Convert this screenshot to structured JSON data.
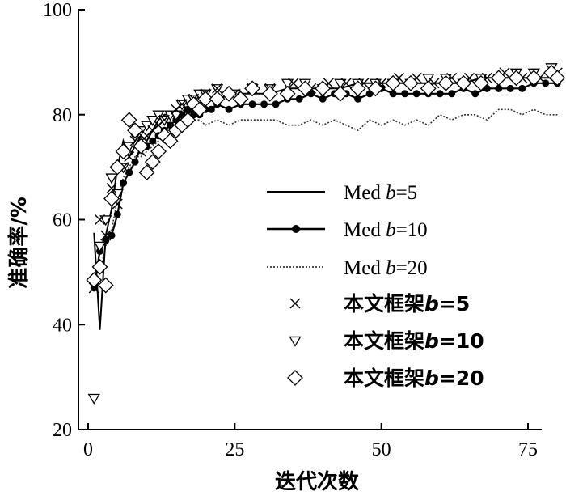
{
  "chart_data": {
    "type": "line",
    "xlabel": "迭代次数",
    "ylabel": "准确率/%",
    "xlim": [
      -1,
      80
    ],
    "ylim": [
      20,
      100
    ],
    "x_ticks": [
      "0",
      "25",
      "50",
      "75"
    ],
    "y_ticks": [
      "20",
      "40",
      "60",
      "80",
      "100"
    ],
    "legend_position": "right",
    "series": [
      {
        "name": "Med b=5",
        "prefix": "Med ",
        "bvar": "b",
        "suffix": "=5",
        "style": "solid-line",
        "color": "#000000",
        "x": [
          1,
          2,
          3,
          4,
          5,
          6,
          7,
          8,
          9,
          10,
          11,
          12,
          13,
          14,
          15,
          16,
          17,
          18,
          19,
          20,
          22,
          25,
          28,
          31,
          34,
          37,
          40,
          43,
          46,
          49,
          52,
          55,
          58,
          61,
          64,
          67,
          70,
          73,
          76,
          79,
          80
        ],
        "y": [
          57.5,
          39,
          57,
          62,
          70,
          75,
          72,
          74,
          76,
          75,
          77,
          79,
          80,
          80,
          81,
          82,
          81,
          82,
          82,
          83,
          83,
          84,
          84,
          84,
          85,
          85,
          85,
          85,
          86,
          86,
          86,
          86,
          86,
          86,
          86,
          87,
          87,
          87,
          87,
          87,
          87
        ]
      },
      {
        "name": "Med b=10",
        "prefix": "Med ",
        "bvar": "b",
        "suffix": "=10",
        "style": "dot-line",
        "color": "#000000",
        "x": [
          1,
          2,
          3,
          4,
          5,
          6,
          7,
          8,
          9,
          10,
          11,
          12,
          13,
          14,
          15,
          16,
          17,
          18,
          19,
          20,
          21,
          22,
          24,
          26,
          28,
          30,
          32,
          34,
          36,
          38,
          40,
          42,
          44,
          46,
          48,
          50,
          52,
          54,
          56,
          58,
          60,
          62,
          64,
          66,
          68,
          70,
          72,
          74,
          76,
          78,
          80
        ],
        "y": [
          47,
          54,
          56,
          57,
          61,
          67,
          69,
          71,
          74,
          74,
          75,
          76,
          77,
          78,
          79,
          80,
          81,
          80,
          80,
          81,
          81,
          82,
          81,
          82,
          82,
          82,
          82,
          83,
          83,
          84,
          83,
          84,
          84,
          83,
          84,
          85,
          84,
          84,
          84,
          84,
          84,
          84,
          85,
          84,
          85,
          85,
          85,
          85,
          86,
          86,
          86
        ]
      },
      {
        "name": "Med b=20",
        "prefix": "Med ",
        "bvar": "b",
        "suffix": "=20",
        "style": "dotted-line",
        "color": "#333333",
        "x": [
          1,
          2,
          3,
          4,
          5,
          6,
          7,
          8,
          9,
          10,
          11,
          12,
          13,
          14,
          15,
          16,
          17,
          18,
          19,
          20,
          22,
          24,
          26,
          28,
          30,
          32,
          34,
          36,
          38,
          40,
          42,
          44,
          46,
          48,
          50,
          52,
          54,
          56,
          58,
          60,
          62,
          64,
          66,
          68,
          70,
          72,
          74,
          76,
          78,
          80
        ],
        "y": [
          48,
          50,
          55,
          58,
          64,
          68,
          70,
          72,
          72,
          73,
          74,
          75,
          76,
          76,
          77,
          77,
          78,
          79,
          79,
          78,
          79,
          78,
          79,
          79,
          79,
          79,
          78,
          78,
          79,
          78,
          79,
          78,
          77,
          79,
          78,
          79,
          78,
          79,
          78,
          80,
          79,
          80,
          80,
          79,
          81,
          81,
          80,
          81,
          80,
          80
        ]
      },
      {
        "name": "本文框架b=5",
        "prefix": "本文框架",
        "bvar": "b",
        "suffix": "=5",
        "style": "x-marker",
        "color": "#000000",
        "x": [
          1,
          2,
          3,
          4,
          5,
          6,
          7,
          8,
          9,
          10,
          11,
          12,
          13,
          14,
          15,
          16,
          17,
          18,
          19,
          20,
          22,
          25,
          28,
          31,
          35,
          38,
          41,
          44,
          47,
          50,
          53,
          56,
          59,
          62,
          65,
          68,
          71,
          74,
          77,
          80
        ],
        "y": [
          47,
          60,
          57,
          66,
          63,
          70,
          72,
          75,
          73,
          76,
          77,
          78,
          79,
          78,
          81,
          82,
          80,
          83,
          82,
          84,
          85,
          84,
          85,
          85,
          86,
          85,
          86,
          86,
          86,
          86,
          87,
          87,
          86,
          87,
          87,
          87,
          88,
          87,
          87,
          88
        ]
      },
      {
        "name": "本文框架b=10",
        "prefix": "本文框架",
        "bvar": "b",
        "suffix": "=10",
        "style": "triangle-marker",
        "color": "#000000",
        "x": [
          1,
          2,
          3,
          4,
          5,
          6,
          7,
          8,
          9,
          10,
          11,
          12,
          13,
          14,
          15,
          16,
          17,
          18,
          19,
          20,
          22,
          25,
          28,
          31,
          34,
          37,
          40,
          43,
          46,
          49,
          52,
          55,
          58,
          61,
          64,
          67,
          70,
          73,
          76,
          79
        ],
        "y": [
          26,
          55,
          60,
          68,
          65,
          70,
          74,
          76,
          77,
          78,
          79,
          80,
          79,
          80,
          80,
          82,
          83,
          83,
          84,
          84,
          85,
          84,
          85,
          85,
          86,
          86,
          85,
          86,
          86,
          86,
          86,
          86,
          87,
          87,
          86,
          87,
          87,
          88,
          88,
          89
        ]
      },
      {
        "name": "本文框架b=20",
        "prefix": "本文框架",
        "bvar": "b",
        "suffix": "=20",
        "style": "diamond-marker",
        "color": "#000000",
        "x": [
          1,
          2,
          3,
          4,
          5,
          6,
          7,
          8,
          9,
          10,
          11,
          12,
          13,
          14,
          15,
          16,
          17,
          18,
          19,
          20,
          22,
          24,
          26,
          28,
          31,
          34,
          37,
          40,
          43,
          46,
          49,
          52,
          55,
          58,
          61,
          64,
          67,
          70,
          73,
          76,
          79,
          80
        ],
        "y": [
          48.5,
          51,
          47.5,
          64,
          70,
          73,
          79,
          77,
          74,
          69,
          71,
          73,
          76,
          75,
          77,
          78,
          79,
          82,
          81,
          83,
          83,
          84,
          83,
          85,
          84,
          84,
          85,
          85,
          84,
          85,
          85,
          86,
          86,
          85,
          86,
          86,
          86,
          87,
          87,
          87,
          88,
          87
        ]
      }
    ]
  }
}
